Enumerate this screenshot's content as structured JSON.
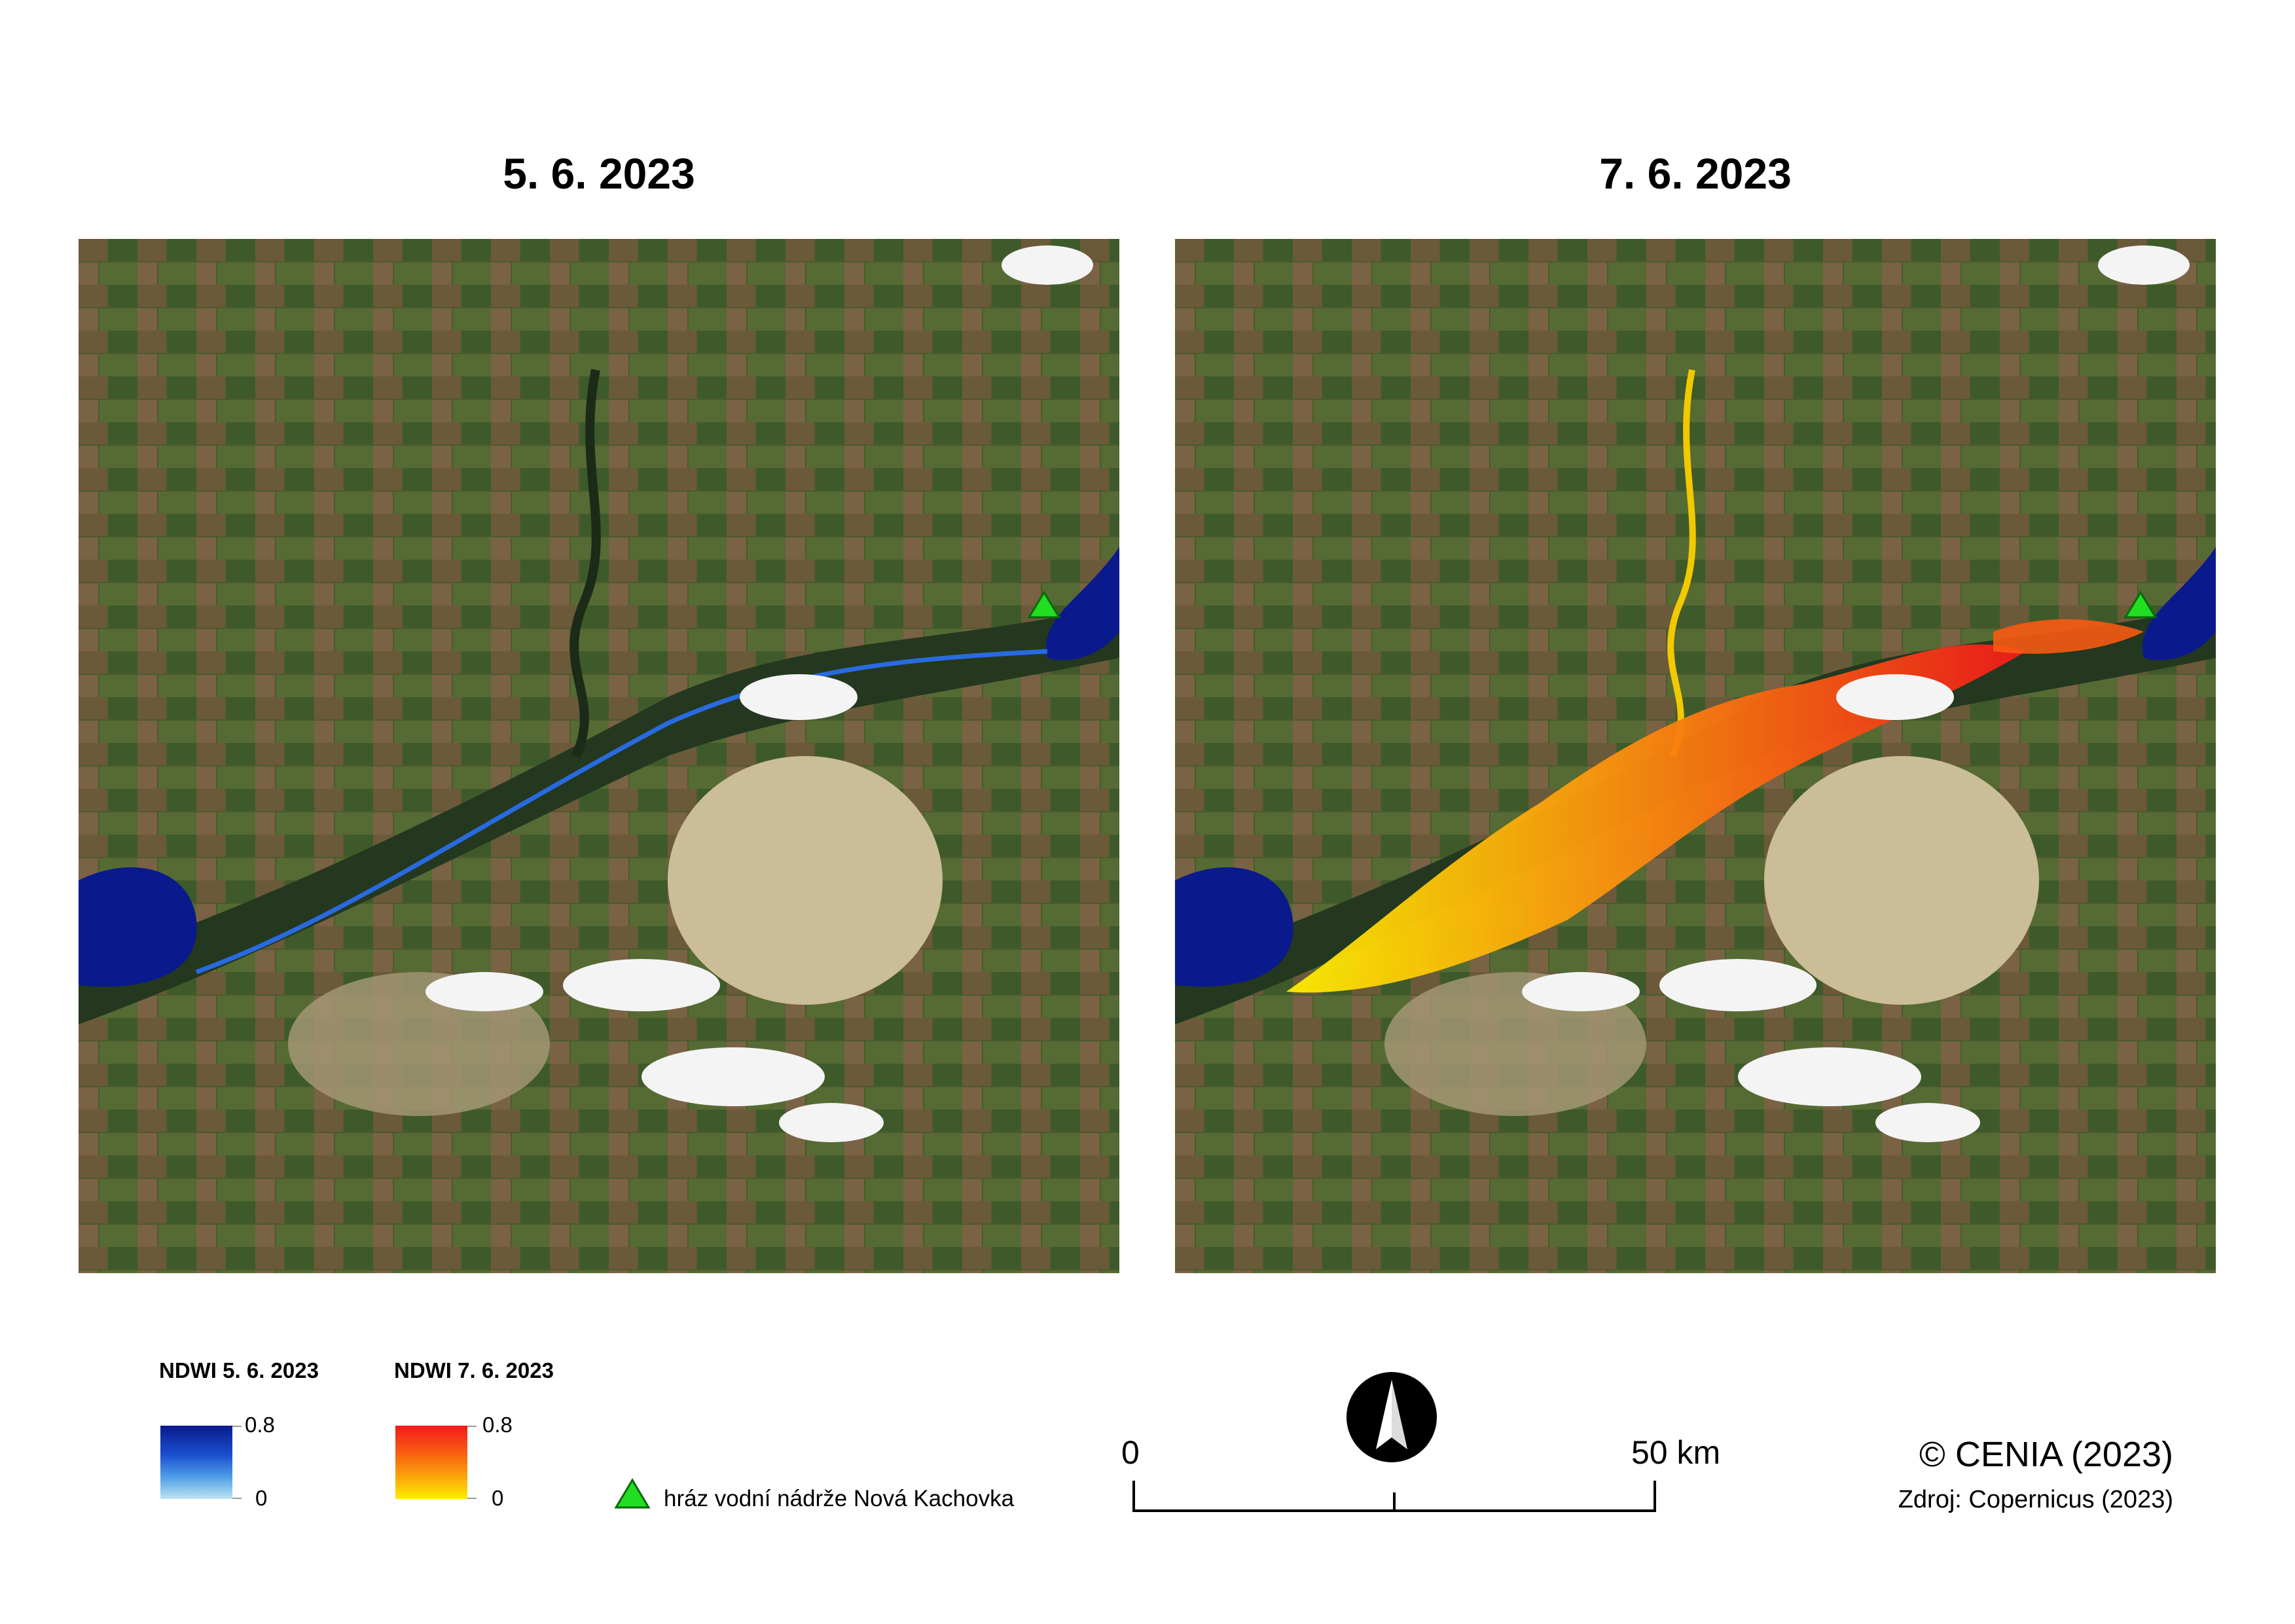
{
  "panels": [
    {
      "title": "5. 6. 2023"
    },
    {
      "title": "7. 6. 2023"
    }
  ],
  "legend": {
    "ndwi_before": {
      "title": "NDWI 5. 6. 2023",
      "max": "0.8",
      "min": "0",
      "colors": [
        "#0a1a8c",
        "#1a4fd0",
        "#4f9ee8",
        "#bfe4f2"
      ]
    },
    "ndwi_after": {
      "title": "NDWI 7. 6. 2023",
      "max": "0.8",
      "min": "0",
      "colors": [
        "#f21a1a",
        "#f75a12",
        "#fb9a0c",
        "#fdee00"
      ]
    },
    "dam": {
      "label": "hráz vodní nádrže Nová Kachovka",
      "color": "#22dd22"
    }
  },
  "scale": {
    "start": "0",
    "end": "50 km"
  },
  "north_arrow": {
    "icon": "north-arrow-icon"
  },
  "credits": {
    "copyright": "© CENIA (2023)",
    "source": "Zdroj: Copernicus (2023)"
  }
}
